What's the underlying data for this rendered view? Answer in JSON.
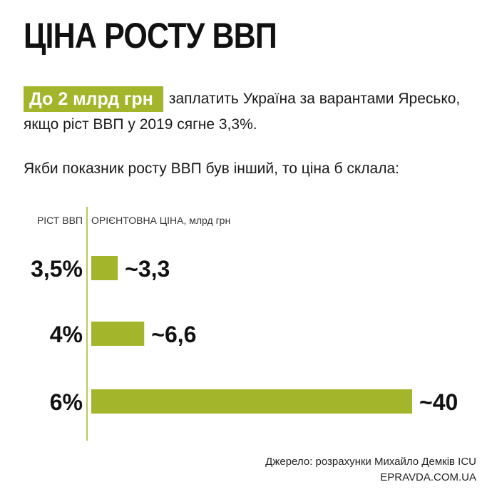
{
  "title": "ЦІНА РОСТУ ВВП",
  "lead": {
    "highlight": "До 2 млрд грн",
    "text": "заплатить Україна за варантами Яресько, якщо ріст ВВП у 2019 сягне 3,3%."
  },
  "question": "Якби показник росту ВВП був інший, то ціна б склала:",
  "chart_data": {
    "type": "bar",
    "orientation": "horizontal",
    "category_header": "РІСТ ВВП",
    "value_header": "ОРІЄНТОВНА ЦІНА, млрд грн",
    "categories": [
      "3,5%",
      "4%",
      "6%"
    ],
    "values": [
      3.3,
      6.6,
      40
    ],
    "value_labels": [
      "~3,3",
      "~6,6",
      "~40"
    ],
    "bar_color": "#a3b52a"
  },
  "footer": {
    "source": "Джерело: розрахунки Михайло Демків ICU",
    "site": "EPRAVDA.COM.UA"
  }
}
